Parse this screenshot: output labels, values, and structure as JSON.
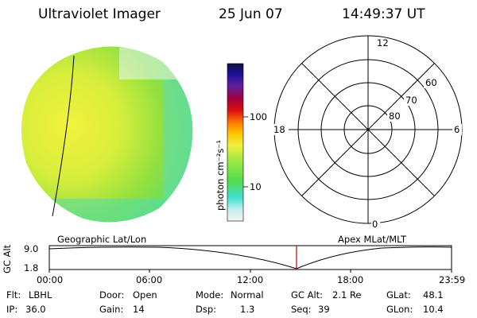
{
  "header": {
    "title": "Ultraviolet Imager",
    "date": "25 Jun 07",
    "time": "14:49:37 UT"
  },
  "colorbar": {
    "label": "photon cm⁻²s⁻¹",
    "ticks": [
      "100",
      "10"
    ]
  },
  "polar_plot": {
    "mlt_labels": {
      "top": "12",
      "left": "18",
      "right": "6",
      "bottom": "0"
    },
    "lat_labels": [
      "60",
      "70",
      "80"
    ]
  },
  "panel_labels": {
    "geographic": "Geographic Lat/Lon",
    "apex": "Apex  MLat/MLT"
  },
  "altitude_plot": {
    "ylabel": "GC Alt",
    "y_ticks": [
      "9.0",
      "1.8"
    ],
    "x_ticks": [
      "00:00",
      "06:00",
      "12:00",
      "18:00",
      "23:59"
    ]
  },
  "info": {
    "filter_label": "Flt:",
    "filter_value": "LBHL",
    "ip_label": "IP:",
    "ip_value": "36.0",
    "door_label": "Door:",
    "door_value": "Open",
    "gain_label": "Gain:",
    "gain_value": "14",
    "mode_label": "Mode:",
    "mode_value": "Normal",
    "dsp_label": "Dsp:",
    "dsp_value": "1.3",
    "gcalt_label": "GC Alt:",
    "gcalt_value": "2.1 Re",
    "seq_label": "Seq:",
    "seq_value": "39",
    "glat_label": "GLat:",
    "glat_value": "48.1",
    "glon_label": "GLon:",
    "glon_value": "10.4"
  },
  "colors": {
    "image_yellow": "#f0f040",
    "image_green": "#8de040",
    "image_cyan": "#40e0d0",
    "marker_red": "#c00000"
  }
}
